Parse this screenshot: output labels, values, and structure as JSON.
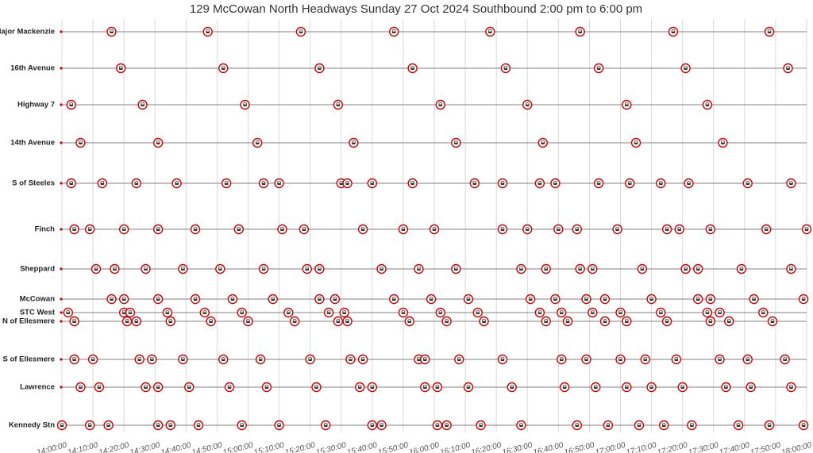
{
  "chart_data": {
    "type": "timeline",
    "title": "129 McCowan North Headways Sunday 27 Oct 2024 Southbound 2:00 pm to 6:00 pm",
    "xlim": [
      "14:00:00",
      "18:00:00"
    ],
    "xticks": [
      "14:00:00",
      "14:10:00",
      "14:20:00",
      "14:30:00",
      "14:40:00",
      "14:50:00",
      "15:00:00",
      "15:10:00",
      "15:20:00",
      "15:30:00",
      "15:40:00",
      "15:50:00",
      "16:00:00",
      "16:10:00",
      "16:20:00",
      "16:30:00",
      "16:40:00",
      "16:50:00",
      "17:00:00",
      "17:10:00",
      "17:20:00",
      "17:30:00",
      "17:40:00",
      "17:50:00",
      "18:00:00"
    ],
    "grid": true,
    "color": "#d00000",
    "series": [
      {
        "name": "S of Major Mackenzie",
        "x": [
          "14:16",
          "14:47",
          "15:17",
          "15:47",
          "16:18",
          "16:47",
          "17:17",
          "17:48"
        ]
      },
      {
        "name": "16th Avenue",
        "x": [
          "14:19",
          "14:52",
          "15:23",
          "15:53",
          "16:23",
          "16:53",
          "17:21",
          "17:54"
        ]
      },
      {
        "name": "Highway 7",
        "x": [
          "14:03",
          "14:26",
          "14:59",
          "15:29",
          "16:02",
          "16:30",
          "17:02",
          "17:28"
        ]
      },
      {
        "name": "14th Avenue",
        "x": [
          "14:06",
          "14:31",
          "15:03",
          "15:34",
          "16:07",
          "16:35",
          "17:05",
          "17:33"
        ]
      },
      {
        "name": "S of Steeles",
        "x": [
          "14:03",
          "14:13",
          "14:24",
          "14:37",
          "14:53",
          "15:05",
          "15:10",
          "15:30",
          "15:32",
          "15:40",
          "15:53",
          "16:13",
          "16:22",
          "16:34",
          "16:39",
          "16:53",
          "17:03",
          "17:13",
          "17:22",
          "17:41",
          "17:55"
        ]
      },
      {
        "name": "Finch",
        "x": [
          "14:04",
          "14:09",
          "14:20",
          "14:31",
          "14:43",
          "14:57",
          "15:11",
          "15:18",
          "15:37",
          "15:50",
          "16:00",
          "16:22",
          "16:30",
          "16:40",
          "16:46",
          "16:59",
          "17:15",
          "17:19",
          "17:29",
          "17:47",
          "18:00"
        ]
      },
      {
        "name": "Sheppard",
        "x": [
          "14:11",
          "14:17",
          "14:27",
          "14:39",
          "14:51",
          "15:05",
          "15:19",
          "15:23",
          "15:43",
          "15:55",
          "16:07",
          "16:28",
          "16:36",
          "16:47",
          "16:51",
          "17:07",
          "17:21",
          "17:25",
          "17:39",
          "17:55"
        ]
      },
      {
        "name": "McCowan",
        "x": [
          "14:16",
          "14:20",
          "14:31",
          "14:43",
          "14:55",
          "15:08",
          "15:23",
          "15:28",
          "15:47",
          "15:59",
          "16:11",
          "16:31",
          "16:39",
          "16:49",
          "16:55",
          "17:10",
          "17:25",
          "17:29",
          "17:43",
          "17:59"
        ]
      },
      {
        "name": "STC West",
        "x": [
          "14:02",
          "14:20",
          "14:22",
          "14:34",
          "14:46",
          "14:58",
          "15:13",
          "15:26",
          "15:31",
          "15:50",
          "16:02",
          "16:14",
          "16:34",
          "16:41",
          "16:51",
          "17:00",
          "17:13",
          "17:28",
          "17:32",
          "17:46"
        ]
      },
      {
        "name": "Brimley N of Ellesmere",
        "x": [
          "14:04",
          "14:21",
          "14:24",
          "14:35",
          "14:48",
          "15:00",
          "15:15",
          "15:29",
          "15:32",
          "15:52",
          "16:04",
          "16:16",
          "16:36",
          "16:43",
          "16:55",
          "17:02",
          "17:15",
          "17:29",
          "17:35",
          "17:49"
        ]
      },
      {
        "name": "S of Ellesmere",
        "x": [
          "14:04",
          "14:10",
          "14:25",
          "14:29",
          "14:39",
          "14:52",
          "15:04",
          "15:20",
          "15:33",
          "15:37",
          "15:55",
          "15:57",
          "16:08",
          "16:22",
          "16:41",
          "16:49",
          "17:00",
          "17:08",
          "17:18",
          "17:32",
          "17:41",
          "17:53"
        ]
      },
      {
        "name": "Lawrence",
        "x": [
          "14:06",
          "14:12",
          "14:27",
          "14:31",
          "14:41",
          "14:54",
          "15:06",
          "15:22",
          "15:36",
          "15:40",
          "15:57",
          "16:01",
          "16:11",
          "16:25",
          "16:42",
          "16:52",
          "17:02",
          "17:10",
          "17:20",
          "17:34",
          "17:42",
          "17:55"
        ]
      },
      {
        "name": "Kennedy Stn",
        "x": [
          "14:00",
          "14:09",
          "14:15",
          "14:31",
          "14:35",
          "14:44",
          "14:58",
          "15:10",
          "15:25",
          "15:40",
          "15:43",
          "16:01",
          "16:04",
          "16:15",
          "16:28",
          "16:46",
          "16:56",
          "17:06",
          "17:14",
          "17:23",
          "17:38",
          "17:48",
          "17:59"
        ]
      }
    ]
  }
}
